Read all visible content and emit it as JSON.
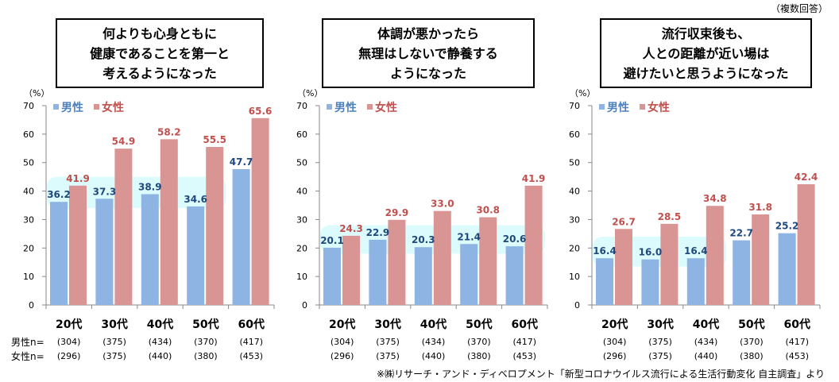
{
  "note": "（複数回答）",
  "source": "※㈱リサーチ・アンド・ディベロプメント「新型コロナウイルス流行による生活行動変化 自主調査」より",
  "row_labels": {
    "male": "男性n=",
    "female": "女性n="
  },
  "colors": {
    "male_bar": "#8eb4e3",
    "female_bar": "#d99594",
    "male_text": "#1f497d",
    "female_text": "#c0504d",
    "legend_male": "#4f81bd",
    "highlight": "#dcfbfd"
  },
  "chart_data": [
    {
      "type": "bar",
      "title": "何よりも心身ともに\n健康であることを第一と\n考えるようになった",
      "ylabel": "（%）",
      "ylim": [
        0,
        70
      ],
      "yticks": [
        0,
        10,
        20,
        30,
        40,
        50,
        60,
        70
      ],
      "categories": [
        "20代",
        "30代",
        "40代",
        "50代",
        "60代"
      ],
      "legend": "top-left",
      "series": [
        {
          "name": "男性",
          "values": [
            36.2,
            37.3,
            38.9,
            34.6,
            47.7
          ],
          "n": [
            "(304)",
            "(375)",
            "(434)",
            "(370)",
            "(417)"
          ]
        },
        {
          "name": "女性",
          "values": [
            41.9,
            54.9,
            58.2,
            55.5,
            65.6
          ],
          "n": [
            "(296)",
            "(375)",
            "(440)",
            "(380)",
            "(453)"
          ]
        }
      ]
    },
    {
      "type": "bar",
      "title": "体調が悪かったら\n無理はしないで静養する\nようになった",
      "ylabel": "（%）",
      "ylim": [
        0,
        70
      ],
      "yticks": [
        0,
        10,
        20,
        30,
        40,
        50,
        60,
        70
      ],
      "categories": [
        "20代",
        "30代",
        "40代",
        "50代",
        "60代"
      ],
      "legend": "top-left",
      "series": [
        {
          "name": "男性",
          "values": [
            20.1,
            22.9,
            20.3,
            21.4,
            20.6
          ],
          "n": [
            "(304)",
            "(375)",
            "(434)",
            "(370)",
            "(417)"
          ]
        },
        {
          "name": "女性",
          "values": [
            24.3,
            29.9,
            33.0,
            30.8,
            41.9
          ],
          "n": [
            "(296)",
            "(375)",
            "(440)",
            "(380)",
            "(453)"
          ]
        }
      ]
    },
    {
      "type": "bar",
      "title": "流行収束後も、\n人との距離が近い場は\n避けたいと思うようになった",
      "ylabel": "（%）",
      "ylim": [
        0,
        70
      ],
      "yticks": [
        0,
        10,
        20,
        30,
        40,
        50,
        60,
        70
      ],
      "categories": [
        "20代",
        "30代",
        "40代",
        "50代",
        "60代"
      ],
      "legend": "top-left",
      "series": [
        {
          "name": "男性",
          "values": [
            16.4,
            16.0,
            16.4,
            22.7,
            25.2
          ],
          "n": [
            "(304)",
            "(375)",
            "(434)",
            "(370)",
            "(417)"
          ]
        },
        {
          "name": "女性",
          "values": [
            26.7,
            28.5,
            34.8,
            31.8,
            42.4
          ],
          "n": [
            "(296)",
            "(375)",
            "(440)",
            "(380)",
            "(453)"
          ]
        }
      ]
    }
  ]
}
